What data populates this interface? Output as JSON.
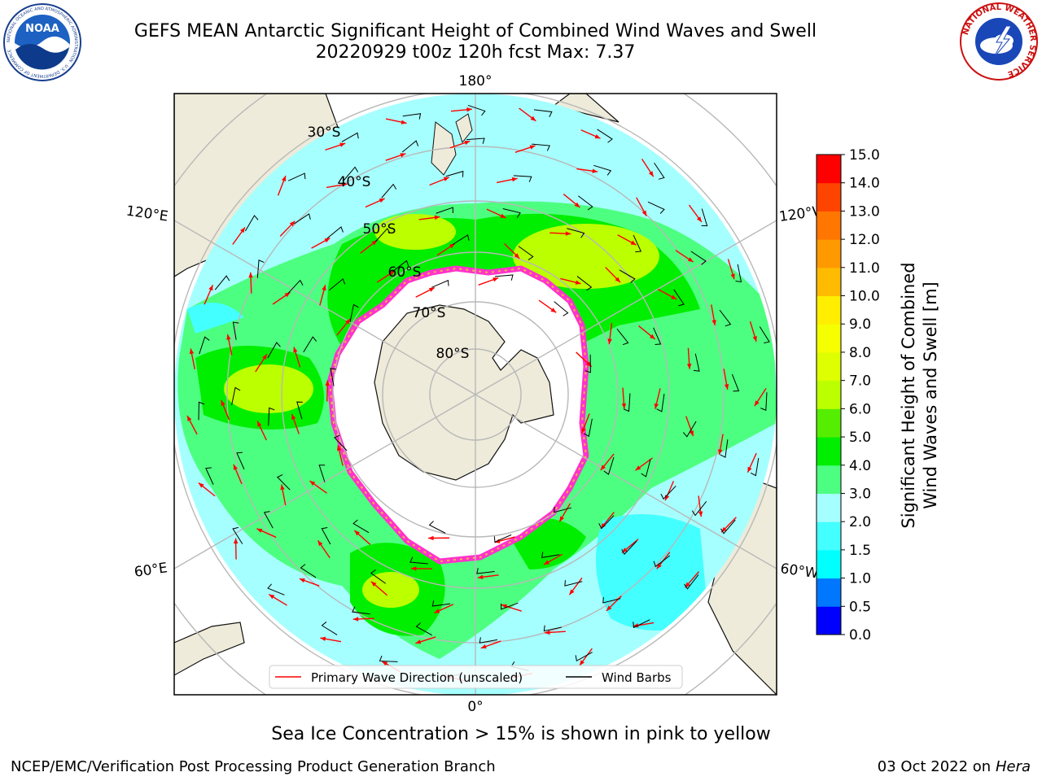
{
  "header": {
    "title_line1": "GEFS MEAN Antarctic Significant Height of Combined Wind Waves and Swell",
    "title_line2": "20220929 t00z 120h fcst   Max: 7.37"
  },
  "logos": {
    "noaa_text": "NOAA",
    "noaa_ring": "NATIONAL OCEANIC AND ATMOSPHERIC ADMINISTRATION · U.S. DEPARTMENT OF COMMERCE",
    "nws_ring": "NATIONAL WEATHER SERVICE"
  },
  "map": {
    "lon_labels": {
      "top": "180°",
      "bottom": "0°",
      "left_upper": "120°E",
      "left_lower": "60°E",
      "right_upper": "120°W",
      "right_lower": "60°W"
    },
    "lat_labels": [
      "30°S",
      "40°S",
      "50°S",
      "60°S",
      "70°S",
      "80°S"
    ],
    "legend": {
      "wave_label": "Primary Wave Direction (unscaled)",
      "barb_label": "Wind Barbs"
    },
    "colors": {
      "land": "#eeebda",
      "ice": "#ffffff",
      "ice_edge": "#ff33cc",
      "ice_edge2": "#ffb347",
      "arrow": "#ff0000",
      "barb": "#000000"
    }
  },
  "colorbar": {
    "title_line1": "Significant Height of Combined",
    "title_line2": "Wind Waves and Swell [m]",
    "ticks": [
      "0.0",
      "0.5",
      "1.0",
      "1.5",
      "2.0",
      "3.0",
      "4.0",
      "5.0",
      "6.0",
      "7.0",
      "8.0",
      "9.0",
      "10.0",
      "11.0",
      "12.0",
      "13.0",
      "14.0",
      "15.0"
    ],
    "colors": [
      "#0000ff",
      "#0077ff",
      "#00ffff",
      "#44ffff",
      "#a6ffff",
      "#4dff80",
      "#00ee00",
      "#55ee00",
      "#bbff00",
      "#ddff00",
      "#f5ff00",
      "#ffee00",
      "#ffbb00",
      "#ff9900",
      "#ff7700",
      "#ff4400",
      "#ff0000"
    ]
  },
  "note": "Sea Ice Concentration > 15% is shown in pink to yellow",
  "footer": {
    "left": "NCEP/EMC/Verification Post Processing Product Generation Branch",
    "right_prefix": "03 Oct 2022 on ",
    "right_host": "Hera"
  }
}
